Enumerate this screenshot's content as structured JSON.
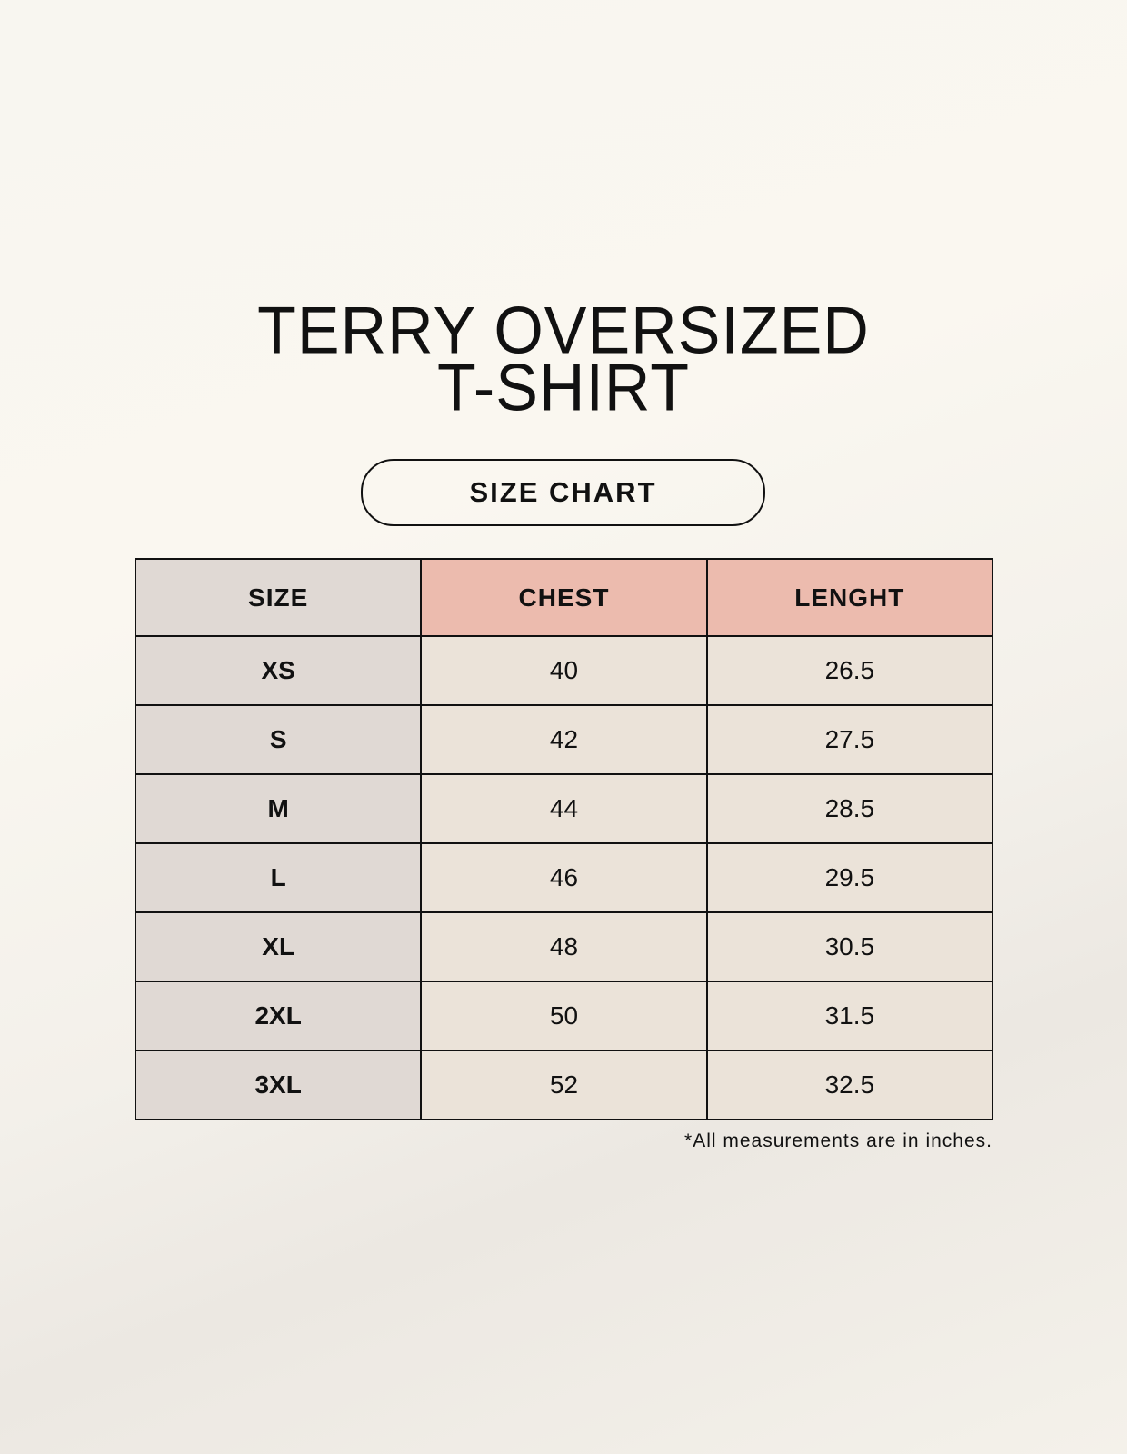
{
  "title_line1": "TERRY OVERSIZED",
  "title_line2": "T-SHIRT",
  "subtitle": "SIZE CHART",
  "table": {
    "headers": [
      "SIZE",
      "CHEST",
      "LENGHT"
    ],
    "rows": [
      [
        "XS",
        "40",
        "26.5"
      ],
      [
        "S",
        "42",
        "27.5"
      ],
      [
        "M",
        "44",
        "28.5"
      ],
      [
        "L",
        "46",
        "29.5"
      ],
      [
        "XL",
        "48",
        "30.5"
      ],
      [
        "2XL",
        "50",
        "31.5"
      ],
      [
        "3XL",
        "52",
        "32.5"
      ]
    ]
  },
  "footnote": "*All measurements are in inches.",
  "colors": {
    "size_column": "#e0d9d4",
    "header_accent": "#ecbbae",
    "value_cells": "#ebe3d9"
  }
}
